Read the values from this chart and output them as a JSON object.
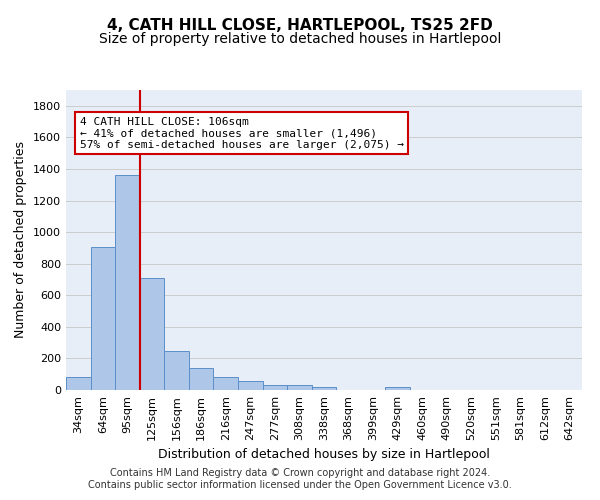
{
  "title": "4, CATH HILL CLOSE, HARTLEPOOL, TS25 2FD",
  "subtitle": "Size of property relative to detached houses in Hartlepool",
  "xlabel": "Distribution of detached houses by size in Hartlepool",
  "ylabel": "Number of detached properties",
  "categories": [
    "34sqm",
    "64sqm",
    "95sqm",
    "125sqm",
    "156sqm",
    "186sqm",
    "216sqm",
    "247sqm",
    "277sqm",
    "308sqm",
    "338sqm",
    "368sqm",
    "399sqm",
    "429sqm",
    "460sqm",
    "490sqm",
    "520sqm",
    "551sqm",
    "581sqm",
    "612sqm",
    "642sqm"
  ],
  "values": [
    80,
    905,
    1360,
    710,
    250,
    140,
    85,
    55,
    30,
    30,
    20,
    0,
    0,
    20,
    0,
    0,
    0,
    0,
    0,
    0,
    0
  ],
  "bar_color": "#aec6e8",
  "bar_edge_color": "#5b8fc9",
  "grid_color": "#cccccc",
  "background_color": "#ffffff",
  "plot_background": "#e8eef8",
  "vline_x": 2.5,
  "vline_color": "#cc0000",
  "annotation_text": "4 CATH HILL CLOSE: 106sqm\n← 41% of detached houses are smaller (1,496)\n57% of semi-detached houses are larger (2,075) →",
  "annotation_box_color": "#cc0000",
  "ylim": [
    0,
    1900
  ],
  "yticks": [
    0,
    200,
    400,
    600,
    800,
    1000,
    1200,
    1400,
    1600,
    1800
  ],
  "footer": "Contains HM Land Registry data © Crown copyright and database right 2024.\nContains public sector information licensed under the Open Government Licence v3.0.",
  "title_fontsize": 11,
  "subtitle_fontsize": 10,
  "xlabel_fontsize": 9,
  "ylabel_fontsize": 9,
  "tick_fontsize": 8,
  "annotation_fontsize": 8,
  "footer_fontsize": 7
}
